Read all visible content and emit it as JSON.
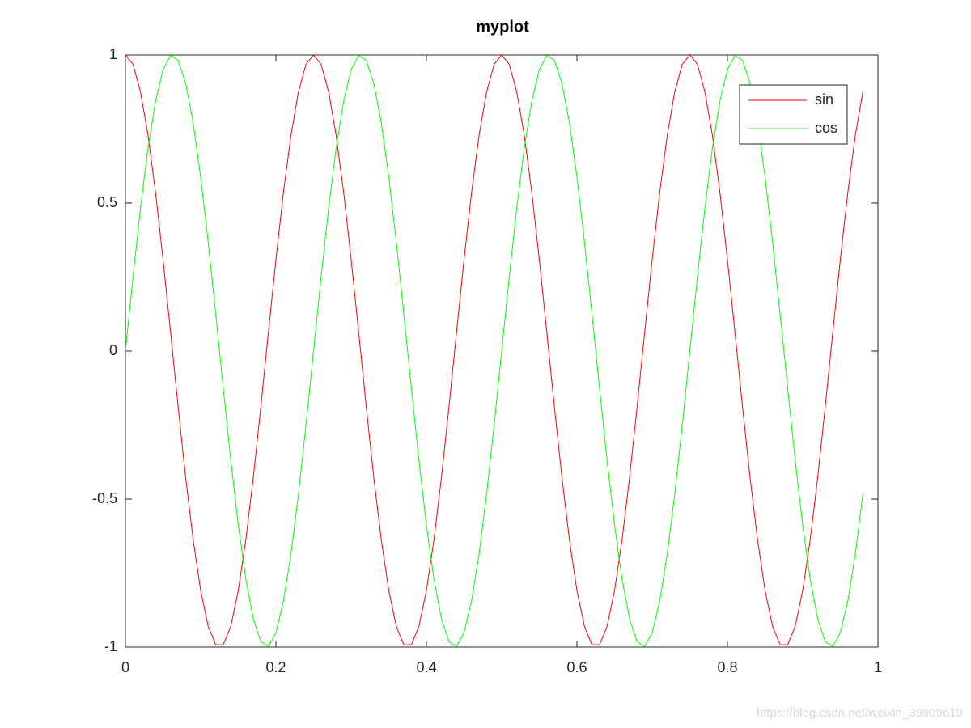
{
  "chart_data": {
    "type": "line",
    "title": "myplot",
    "x": [
      0,
      0.01,
      0.02,
      0.03,
      0.04,
      0.05,
      0.06,
      0.07,
      0.08,
      0.09,
      0.1,
      0.11,
      0.12,
      0.13,
      0.14,
      0.15,
      0.16,
      0.17,
      0.18,
      0.19,
      0.2,
      0.21,
      0.22,
      0.23,
      0.24,
      0.25,
      0.26,
      0.27,
      0.28,
      0.29,
      0.3,
      0.31,
      0.32,
      0.33,
      0.34,
      0.35,
      0.36,
      0.37,
      0.38,
      0.39,
      0.4,
      0.41,
      0.42,
      0.43,
      0.44,
      0.45,
      0.46,
      0.47,
      0.48,
      0.49,
      0.5,
      0.51,
      0.52,
      0.53,
      0.54,
      0.55,
      0.56,
      0.57,
      0.58,
      0.59,
      0.6,
      0.61,
      0.62,
      0.63,
      0.64,
      0.65,
      0.66,
      0.67,
      0.68,
      0.69,
      0.7,
      0.71,
      0.72,
      0.73,
      0.74,
      0.75,
      0.76,
      0.77,
      0.78,
      0.79,
      0.8,
      0.81,
      0.82,
      0.83,
      0.84,
      0.85,
      0.86,
      0.87,
      0.88,
      0.89,
      0.9,
      0.91,
      0.92,
      0.93,
      0.94,
      0.95,
      0.96,
      0.97,
      0.98
    ],
    "series": [
      {
        "name": "sin",
        "color": "#ff0000",
        "values": [
          1,
          0.969,
          0.876,
          0.729,
          0.536,
          0.309,
          0.063,
          -0.187,
          -0.426,
          -0.637,
          -0.809,
          -0.93,
          -0.992,
          -0.992,
          -0.93,
          -0.809,
          -0.637,
          -0.426,
          -0.187,
          0.063,
          0.309,
          0.536,
          0.729,
          0.876,
          0.969,
          1,
          0.969,
          0.876,
          0.729,
          0.536,
          0.309,
          0.063,
          -0.187,
          -0.426,
          -0.637,
          -0.809,
          -0.93,
          -0.992,
          -0.992,
          -0.93,
          -0.809,
          -0.637,
          -0.426,
          -0.187,
          0.063,
          0.309,
          0.536,
          0.729,
          0.876,
          0.969,
          1,
          0.969,
          0.876,
          0.729,
          0.536,
          0.309,
          0.063,
          -0.187,
          -0.426,
          -0.637,
          -0.809,
          -0.93,
          -0.992,
          -0.992,
          -0.93,
          -0.809,
          -0.637,
          -0.426,
          -0.187,
          0.063,
          0.309,
          0.536,
          0.729,
          0.876,
          0.969,
          1,
          0.969,
          0.876,
          0.729,
          0.536,
          0.309,
          0.063,
          -0.187,
          -0.426,
          -0.637,
          -0.809,
          -0.93,
          -0.992,
          -0.992,
          -0.93,
          -0.809,
          -0.637,
          -0.426,
          -0.187,
          0.063,
          0.309,
          0.536,
          0.729,
          0.876
        ]
      },
      {
        "name": "cos",
        "color": "#00ff00",
        "values": [
          0,
          0.249,
          0.482,
          0.685,
          0.844,
          0.951,
          0.998,
          0.982,
          0.905,
          0.771,
          0.588,
          0.368,
          0.125,
          -0.125,
          -0.368,
          -0.588,
          -0.771,
          -0.905,
          -0.982,
          -0.998,
          -0.951,
          -0.844,
          -0.685,
          -0.482,
          -0.249,
          0,
          0.249,
          0.482,
          0.685,
          0.844,
          0.951,
          0.998,
          0.982,
          0.905,
          0.771,
          0.588,
          0.368,
          0.125,
          -0.125,
          -0.368,
          -0.588,
          -0.771,
          -0.905,
          -0.982,
          -0.998,
          -0.951,
          -0.844,
          -0.685,
          -0.482,
          -0.249,
          0,
          0.249,
          0.482,
          0.685,
          0.844,
          0.951,
          0.998,
          0.982,
          0.905,
          0.771,
          0.588,
          0.368,
          0.125,
          -0.125,
          -0.368,
          -0.588,
          -0.771,
          -0.905,
          -0.982,
          -0.998,
          -0.951,
          -0.844,
          -0.685,
          -0.482,
          -0.249,
          0,
          0.249,
          0.482,
          0.685,
          0.844,
          0.951,
          0.998,
          0.982,
          0.905,
          0.771,
          0.588,
          0.368,
          0.125,
          -0.125,
          -0.368,
          -0.588,
          -0.771,
          -0.905,
          -0.982,
          -0.998,
          -0.951,
          -0.844,
          -0.685,
          -0.482
        ]
      }
    ],
    "xlim": [
      0,
      1
    ],
    "xticks": [
      0,
      0.2,
      0.4,
      0.6,
      0.8,
      1
    ],
    "ylim": [
      -1,
      1
    ],
    "yticks": [
      -1,
      -0.5,
      0,
      0.5,
      1
    ],
    "grid": false,
    "legend": "top-right"
  },
  "watermark": "https://blog.csdn.net/weixin_39909619"
}
